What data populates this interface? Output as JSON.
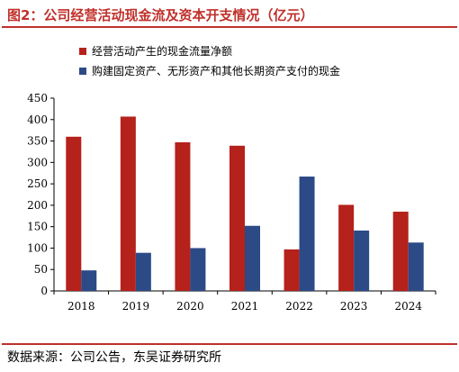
{
  "title": "图2：公司经营活动现金流及资本开支情况（亿元）",
  "source": "数据来源：公司公告，东吴证券研究所",
  "colors": {
    "title": "#c0302b",
    "series_a": "#b5211b",
    "series_b": "#2b4a86",
    "rule": "#c0302b"
  },
  "chart_data": {
    "type": "bar",
    "title": "",
    "xlabel": "",
    "ylabel": "",
    "categories": [
      "2018",
      "2019",
      "2020",
      "2021",
      "2022",
      "2023",
      "2024"
    ],
    "series": [
      {
        "name": "经营活动产生的现金流量净额",
        "values": [
          360,
          407,
          347,
          339,
          97,
          201,
          185
        ]
      },
      {
        "name": "购建固定资产、无形资产和其他长期资产支付的现金",
        "values": [
          48,
          89,
          100,
          152,
          267,
          141,
          113
        ]
      }
    ],
    "ylim": [
      0,
      450
    ],
    "yticks": [
      "0",
      "50",
      "100",
      "150",
      "200",
      "250",
      "300",
      "350",
      "400",
      "450"
    ],
    "grid": false,
    "legend_position": "top-left"
  }
}
